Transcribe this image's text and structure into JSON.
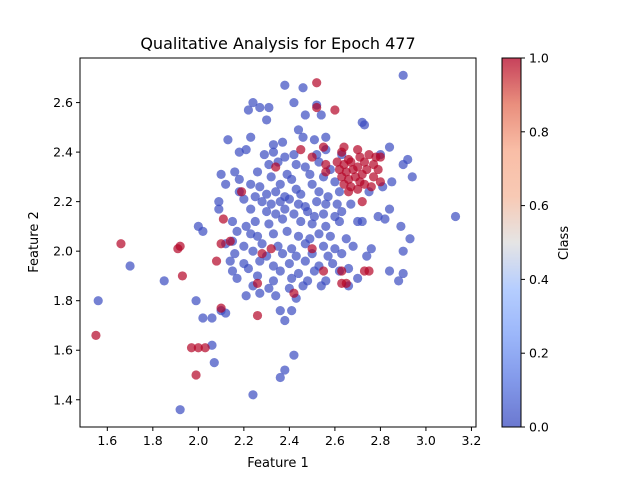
{
  "chart_data": {
    "type": "scatter",
    "title": "Qualitative Analysis for Epoch 477",
    "xlabel": "Feature 1",
    "ylabel": "Feature 2",
    "xlim": [
      1.48,
      3.22
    ],
    "ylim": [
      1.29,
      2.78
    ],
    "xticks": [
      "1.6",
      "1.8",
      "2.0",
      "2.2",
      "2.4",
      "2.6",
      "2.8",
      "3.0",
      "3.2"
    ],
    "yticks": [
      "1.4",
      "1.6",
      "1.8",
      "2.0",
      "2.2",
      "2.4",
      "2.6"
    ],
    "colorbar": {
      "label": "Class",
      "range": [
        0,
        1
      ],
      "ticks": [
        "0.0",
        "0.2",
        "0.4",
        "0.6",
        "0.8",
        "1.0"
      ],
      "colormap": "coolwarm",
      "low_color": "#3b4cc0",
      "high_color": "#b40426"
    },
    "grid": false,
    "class0": [
      [
        2.9,
        2.71
      ],
      [
        2.38,
        2.67
      ],
      [
        2.46,
        2.66
      ],
      [
        2.22,
        2.57
      ],
      [
        2.24,
        2.6
      ],
      [
        2.27,
        2.58
      ],
      [
        2.31,
        2.58
      ],
      [
        2.42,
        2.6
      ],
      [
        2.47,
        2.55
      ],
      [
        2.52,
        2.59
      ],
      [
        2.54,
        2.55
      ],
      [
        2.72,
        2.52
      ],
      [
        2.73,
        2.51
      ],
      [
        2.3,
        2.53
      ],
      [
        2.44,
        2.49
      ],
      [
        2.13,
        2.45
      ],
      [
        2.23,
        2.46
      ],
      [
        2.33,
        2.43
      ],
      [
        2.37,
        2.44
      ],
      [
        2.46,
        2.46
      ],
      [
        2.51,
        2.45
      ],
      [
        2.56,
        2.46
      ],
      [
        2.84,
        2.42
      ],
      [
        2.18,
        2.4
      ],
      [
        2.21,
        2.41
      ],
      [
        2.29,
        2.39
      ],
      [
        2.33,
        2.4
      ],
      [
        2.38,
        2.38
      ],
      [
        2.42,
        2.39
      ],
      [
        2.52,
        2.39
      ],
      [
        2.56,
        2.41
      ],
      [
        2.63,
        2.39
      ],
      [
        2.8,
        2.39
      ],
      [
        2.92,
        2.37
      ],
      [
        2.31,
        2.35
      ],
      [
        2.35,
        2.36
      ],
      [
        2.43,
        2.35
      ],
      [
        2.47,
        2.34
      ],
      [
        2.53,
        2.36
      ],
      [
        2.9,
        2.35
      ],
      [
        2.16,
        2.32
      ],
      [
        2.1,
        2.31
      ],
      [
        2.26,
        2.32
      ],
      [
        2.32,
        2.3
      ],
      [
        2.39,
        2.31
      ],
      [
        2.41,
        2.29
      ],
      [
        2.49,
        2.31
      ],
      [
        2.55,
        2.3
      ],
      [
        2.58,
        2.33
      ],
      [
        2.85,
        2.28
      ],
      [
        2.94,
        2.3
      ],
      [
        2.12,
        2.27
      ],
      [
        2.18,
        2.29
      ],
      [
        2.23,
        2.27
      ],
      [
        2.27,
        2.26
      ],
      [
        2.36,
        2.27
      ],
      [
        2.43,
        2.25
      ],
      [
        2.5,
        2.27
      ],
      [
        2.6,
        2.28
      ],
      [
        2.81,
        2.26
      ],
      [
        2.75,
        2.24
      ],
      [
        2.18,
        2.24
      ],
      [
        2.25,
        2.22
      ],
      [
        2.3,
        2.23
      ],
      [
        2.34,
        2.24
      ],
      [
        2.38,
        2.22
      ],
      [
        2.45,
        2.23
      ],
      [
        2.53,
        2.24
      ],
      [
        2.57,
        2.22
      ],
      [
        2.62,
        2.24
      ],
      [
        2.09,
        2.2
      ],
      [
        2.09,
        2.17
      ],
      [
        2.2,
        2.21
      ],
      [
        2.28,
        2.2
      ],
      [
        2.32,
        2.19
      ],
      [
        2.36,
        2.2
      ],
      [
        2.4,
        2.21
      ],
      [
        2.44,
        2.19
      ],
      [
        2.47,
        2.18
      ],
      [
        2.52,
        2.2
      ],
      [
        2.56,
        2.19
      ],
      [
        2.61,
        2.19
      ],
      [
        2.67,
        2.19
      ],
      [
        2.84,
        2.17
      ],
      [
        2.23,
        2.17
      ],
      [
        2.3,
        2.16
      ],
      [
        2.34,
        2.15
      ],
      [
        2.38,
        2.17
      ],
      [
        2.42,
        2.15
      ],
      [
        2.48,
        2.16
      ],
      [
        2.51,
        2.14
      ],
      [
        2.55,
        2.15
      ],
      [
        2.6,
        2.14
      ],
      [
        2.63,
        2.16
      ],
      [
        2.79,
        2.14
      ],
      [
        2.82,
        2.13
      ],
      [
        2.7,
        2.12
      ],
      [
        2.72,
        2.12
      ],
      [
        2.15,
        2.12
      ],
      [
        2.21,
        2.1
      ],
      [
        2.25,
        2.12
      ],
      [
        2.31,
        2.11
      ],
      [
        2.37,
        2.13
      ],
      [
        2.45,
        2.12
      ],
      [
        2.5,
        2.11
      ],
      [
        2.56,
        2.1
      ],
      [
        2.62,
        2.12
      ],
      [
        2.89,
        2.1
      ],
      [
        2.02,
        2.08
      ],
      [
        2.17,
        2.08
      ],
      [
        2.23,
        2.07
      ],
      [
        2.26,
        2.06
      ],
      [
        2.33,
        2.07
      ],
      [
        2.39,
        2.08
      ],
      [
        2.44,
        2.06
      ],
      [
        2.49,
        2.05
      ],
      [
        2.53,
        2.07
      ],
      [
        2.58,
        2.06
      ],
      [
        2.65,
        2.05
      ],
      [
        2.93,
        2.05
      ],
      [
        2.12,
        2.03
      ],
      [
        2.15,
        2.04
      ],
      [
        2.2,
        2.02
      ],
      [
        2.28,
        2.03
      ],
      [
        2.35,
        2.02
      ],
      [
        2.41,
        2.01
      ],
      [
        2.47,
        2.03
      ],
      [
        2.55,
        2.02
      ],
      [
        2.6,
        2.01
      ],
      [
        2.68,
        2.02
      ],
      [
        2.76,
        2.01
      ],
      [
        2.9,
        2.0
      ],
      [
        2.16,
        1.99
      ],
      [
        2.24,
        2.0
      ],
      [
        2.3,
        1.98
      ],
      [
        2.37,
        1.99
      ],
      [
        2.43,
        1.98
      ],
      [
        2.5,
        1.99
      ],
      [
        2.57,
        1.98
      ],
      [
        2.63,
        1.99
      ],
      [
        2.74,
        1.98
      ],
      [
        2.14,
        1.96
      ],
      [
        2.2,
        1.95
      ],
      [
        2.27,
        1.96
      ],
      [
        2.33,
        1.94
      ],
      [
        2.4,
        1.95
      ],
      [
        2.47,
        1.96
      ],
      [
        2.53,
        1.94
      ],
      [
        2.59,
        1.95
      ],
      [
        2.66,
        1.93
      ],
      [
        2.15,
        1.92
      ],
      [
        2.22,
        1.93
      ],
      [
        2.36,
        1.92
      ],
      [
        2.44,
        1.91
      ],
      [
        2.51,
        1.92
      ],
      [
        2.62,
        1.92
      ],
      [
        2.84,
        1.92
      ],
      [
        2.17,
        1.89
      ],
      [
        2.26,
        1.9
      ],
      [
        2.33,
        1.88
      ],
      [
        2.41,
        1.89
      ],
      [
        2.48,
        1.88
      ],
      [
        2.56,
        1.88
      ],
      [
        2.7,
        1.89
      ],
      [
        2.9,
        1.91
      ],
      [
        2.88,
        1.88
      ],
      [
        2.24,
        1.86
      ],
      [
        2.31,
        1.85
      ],
      [
        2.4,
        1.85
      ],
      [
        2.46,
        1.86
      ],
      [
        2.54,
        1.86
      ],
      [
        2.66,
        1.86
      ],
      [
        2.27,
        1.83
      ],
      [
        2.34,
        1.82
      ],
      [
        2.43,
        1.81
      ],
      [
        2.21,
        1.82
      ],
      [
        2.1,
        1.76
      ],
      [
        2.12,
        1.75
      ],
      [
        2.36,
        1.76
      ],
      [
        2.41,
        1.76
      ],
      [
        2.38,
        1.72
      ],
      [
        2.02,
        1.73
      ],
      [
        2.06,
        1.73
      ],
      [
        1.99,
        1.8
      ],
      [
        2.06,
        1.62
      ],
      [
        2.07,
        1.55
      ],
      [
        2.42,
        1.58
      ],
      [
        2.38,
        1.52
      ],
      [
        2.36,
        1.49
      ],
      [
        2.24,
        1.42
      ],
      [
        1.92,
        1.36
      ],
      [
        1.56,
        1.8
      ],
      [
        1.7,
        1.94
      ],
      [
        1.85,
        1.88
      ],
      [
        3.13,
        2.14
      ],
      [
        2.0,
        2.1
      ]
    ],
    "class1": [
      [
        2.52,
        2.68
      ],
      [
        2.6,
        2.57
      ],
      [
        2.52,
        2.58
      ],
      [
        2.45,
        2.41
      ],
      [
        2.55,
        2.42
      ],
      [
        2.63,
        2.4
      ],
      [
        2.64,
        2.42
      ],
      [
        2.7,
        2.41
      ],
      [
        2.75,
        2.39
      ],
      [
        2.5,
        2.38
      ],
      [
        2.66,
        2.37
      ],
      [
        2.71,
        2.38
      ],
      [
        2.78,
        2.38
      ],
      [
        2.8,
        2.38
      ],
      [
        2.34,
        2.34
      ],
      [
        2.56,
        2.35
      ],
      [
        2.61,
        2.36
      ],
      [
        2.64,
        2.35
      ],
      [
        2.67,
        2.36
      ],
      [
        2.7,
        2.34
      ],
      [
        2.73,
        2.36
      ],
      [
        2.77,
        2.35
      ],
      [
        2.62,
        2.33
      ],
      [
        2.65,
        2.32
      ],
      [
        2.68,
        2.33
      ],
      [
        2.72,
        2.31
      ],
      [
        2.74,
        2.33
      ],
      [
        2.79,
        2.33
      ],
      [
        2.56,
        2.32
      ],
      [
        2.63,
        2.3
      ],
      [
        2.66,
        2.29
      ],
      [
        2.69,
        2.3
      ],
      [
        2.71,
        2.28
      ],
      [
        2.77,
        2.3
      ],
      [
        2.64,
        2.27
      ],
      [
        2.67,
        2.26
      ],
      [
        2.73,
        2.27
      ],
      [
        2.76,
        2.26
      ],
      [
        2.8,
        2.28
      ],
      [
        2.66,
        2.24
      ],
      [
        2.7,
        2.25
      ],
      [
        2.19,
        2.24
      ],
      [
        2.72,
        2.2
      ],
      [
        2.11,
        2.13
      ],
      [
        1.91,
        2.01
      ],
      [
        1.92,
        2.02
      ],
      [
        1.66,
        2.03
      ],
      [
        2.1,
        2.03
      ],
      [
        2.14,
        2.04
      ],
      [
        2.32,
        2.01
      ],
      [
        2.5,
        2.01
      ],
      [
        2.28,
        1.99
      ],
      [
        2.08,
        1.96
      ],
      [
        2.55,
        1.92
      ],
      [
        2.63,
        1.92
      ],
      [
        2.73,
        1.92
      ],
      [
        2.75,
        1.92
      ],
      [
        2.63,
        1.87
      ],
      [
        2.65,
        1.87
      ],
      [
        2.26,
        1.87
      ],
      [
        2.42,
        1.83
      ],
      [
        2.1,
        1.77
      ],
      [
        2.26,
        1.74
      ],
      [
        1.93,
        1.9
      ],
      [
        1.97,
        1.61
      ],
      [
        2.0,
        1.61
      ],
      [
        2.03,
        1.61
      ],
      [
        1.99,
        1.5
      ],
      [
        1.55,
        1.66
      ]
    ]
  }
}
